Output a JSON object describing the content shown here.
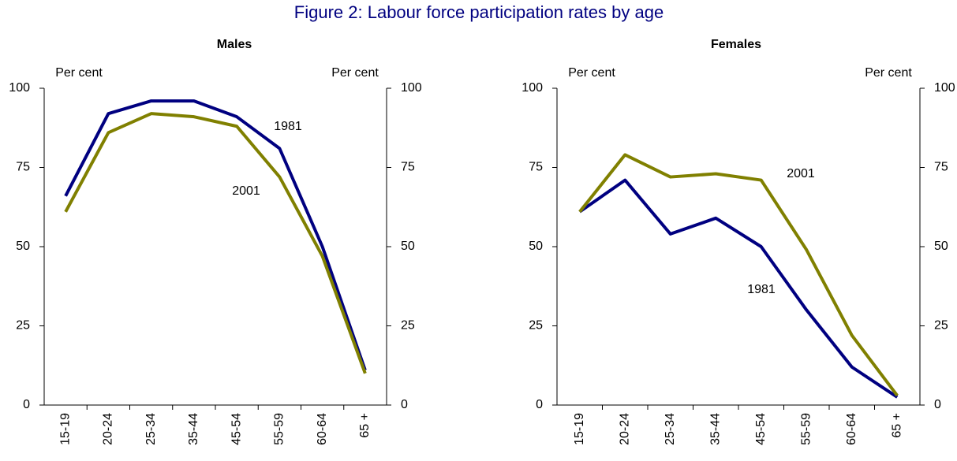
{
  "title": "Figure 2:  Labour force participation rates by age",
  "chart_data": [
    {
      "type": "line",
      "title": "Males",
      "ylabel": "Per cent",
      "y2label": "Per cent",
      "categories": [
        "15-19",
        "20-24",
        "25-34",
        "35-44",
        "45-54",
        "55-59",
        "60-64",
        "65 +"
      ],
      "series": [
        {
          "name": "1981",
          "color": "#000080",
          "values": [
            66,
            92,
            96,
            96,
            91,
            81,
            50,
            11
          ]
        },
        {
          "name": "2001",
          "color": "#808000",
          "values": [
            61,
            86,
            92,
            91,
            88,
            72,
            47,
            10
          ]
        }
      ],
      "ylim": [
        0,
        100
      ],
      "yticks": [
        0,
        25,
        50,
        75,
        100
      ],
      "y2lim": [
        0,
        100
      ],
      "y2ticks": [
        0,
        25,
        50,
        75,
        100
      ],
      "grid": false
    },
    {
      "type": "line",
      "title": "Females",
      "ylabel": "Per cent",
      "y2label": "Per cent",
      "categories": [
        "15-19",
        "20-24",
        "25-34",
        "35-44",
        "45-54",
        "55-59",
        "60-64",
        "65 +"
      ],
      "series": [
        {
          "name": "1981",
          "color": "#000080",
          "values": [
            61,
            71,
            54,
            59,
            50,
            30,
            12,
            2.5
          ]
        },
        {
          "name": "2001",
          "color": "#808000",
          "values": [
            61,
            79,
            72,
            73,
            71,
            49,
            22,
            3
          ]
        }
      ],
      "ylim": [
        0,
        100
      ],
      "yticks": [
        0,
        25,
        50,
        75,
        100
      ],
      "y2lim": [
        0,
        100
      ],
      "y2ticks": [
        0,
        25,
        50,
        75,
        100
      ],
      "grid": false
    }
  ]
}
